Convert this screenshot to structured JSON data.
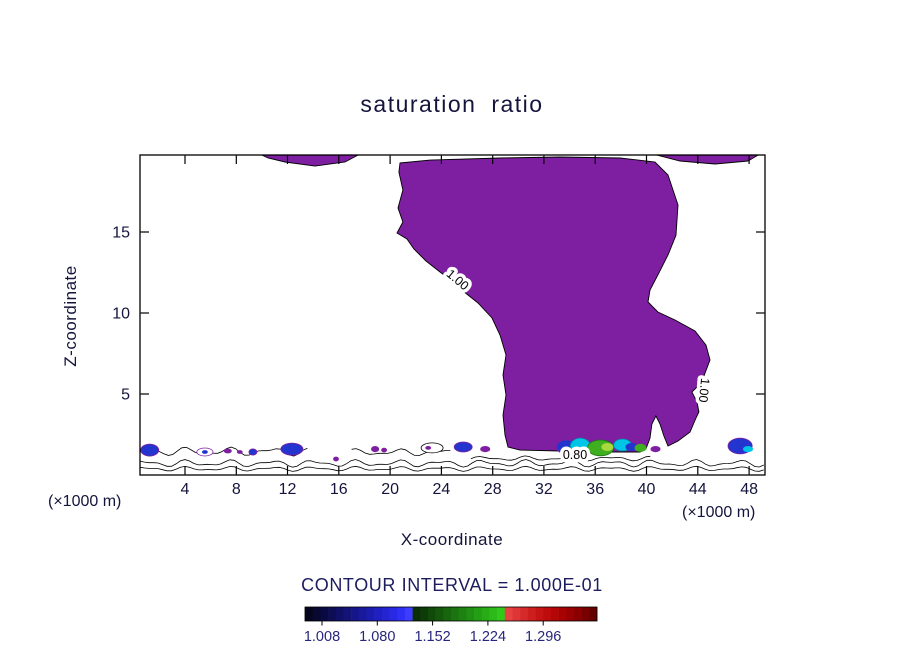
{
  "title": "saturation ratio",
  "caption": "CONTOUR INTERVAL = 1.000E-01",
  "axes": {
    "x_label": "X-coordinate",
    "y_label": "Z-coordinate",
    "unit_left": "(×1000 m)",
    "unit_right": "(×1000 m)"
  },
  "colorbar": {
    "labels": [
      "1.008",
      "1.080",
      "1.152",
      "1.224",
      "1.296"
    ],
    "colors": [
      "#05051e",
      "#080830",
      "#0a0a42",
      "#0d0d54",
      "#101066",
      "#131378",
      "#16168a",
      "#19199c",
      "#1c1cae",
      "#2020c0",
      "#2424d2",
      "#2929e4",
      "#2f2ff6",
      "#3d3dff",
      "#0b2e06",
      "#0e3c08",
      "#114a0a",
      "#14580c",
      "#17660e",
      "#1a7410",
      "#1d8212",
      "#209012",
      "#249e14",
      "#28ac16",
      "#2cba18",
      "#31c81a",
      "#e64242",
      "#de3636",
      "#d62a2a",
      "#ce1f1f",
      "#c61414",
      "#be0c0c",
      "#b40606",
      "#a80303",
      "#9a0101",
      "#8a0000",
      "#780000",
      "#640000"
    ]
  },
  "chart_data": {
    "type": "contour",
    "title": "saturation ratio",
    "xlabel": "X-coordinate (×1000 m)",
    "ylabel": "Z-coordinate (×1000 m)",
    "x_range": [
      0.5,
      49.2
    ],
    "z_range": [
      0,
      19.75
    ],
    "x_tick_values": [
      4,
      8,
      12,
      16,
      20,
      24,
      28,
      32,
      36,
      40,
      44,
      48
    ],
    "z_tick_values": [
      5,
      10,
      15
    ],
    "contour_interval": "1.000E-01",
    "colorbar_level_values": [
      1.008,
      1.08,
      1.152,
      1.224,
      1.296
    ],
    "contour_labels": [
      {
        "text": "1.00",
        "x": 25.06,
        "z": 11.85,
        "rot": 40
      },
      {
        "text": "1.00",
        "x": 44.17,
        "z": 5.25,
        "rot": 95
      },
      {
        "text": "0.80",
        "x": 34.42,
        "z": 0.99,
        "rot": 0
      }
    ],
    "fill_colors": {
      "purple": "#7e1fa2",
      "blue": "#2334cf",
      "cyan": "#00c5e6",
      "green": "#3fae1f",
      "lightgreen": "#a8da3e",
      "white": "#ffffff"
    },
    "regions": [
      {
        "name": "main-saturated-plume",
        "fill": "purple",
        "points": [
          [
            20.77,
            19.26
          ],
          [
            23.11,
            19.44
          ],
          [
            28.57,
            19.57
          ],
          [
            33.25,
            19.63
          ],
          [
            37.93,
            19.57
          ],
          [
            40.66,
            19.32
          ],
          [
            41.68,
            18.52
          ],
          [
            42.46,
            16.67
          ],
          [
            42.3,
            14.81
          ],
          [
            41.68,
            13.58
          ],
          [
            40.89,
            12.35
          ],
          [
            40.27,
            11.42
          ],
          [
            40.12,
            10.68
          ],
          [
            40.89,
            10.06
          ],
          [
            42.22,
            9.57
          ],
          [
            43.78,
            8.89
          ],
          [
            44.64,
            8.02
          ],
          [
            44.95,
            7.1
          ],
          [
            44.48,
            6.11
          ],
          [
            44.01,
            5.49
          ],
          [
            43.54,
            5.12
          ],
          [
            43.94,
            4.51
          ],
          [
            44.09,
            3.89
          ],
          [
            43.86,
            3.52
          ],
          [
            43.39,
            2.65
          ],
          [
            42.46,
            2.1
          ],
          [
            41.68,
            1.79
          ],
          [
            41.36,
            2.41
          ],
          [
            41.05,
            3.15
          ],
          [
            40.73,
            3.64
          ],
          [
            40.42,
            3.15
          ],
          [
            40.27,
            2.28
          ],
          [
            39.95,
            1.6
          ],
          [
            39.49,
            1.42
          ],
          [
            36.37,
            1.42
          ],
          [
            33.25,
            1.48
          ],
          [
            30.13,
            1.54
          ],
          [
            29.2,
            1.73
          ],
          [
            28.96,
            2.47
          ],
          [
            28.81,
            3.7
          ],
          [
            29.04,
            4.94
          ],
          [
            28.81,
            6.17
          ],
          [
            29.04,
            7.41
          ],
          [
            28.57,
            8.64
          ],
          [
            27.95,
            9.69
          ],
          [
            26.86,
            10.62
          ],
          [
            25.69,
            11.36
          ],
          [
            24.83,
            11.98
          ],
          [
            23.89,
            12.53
          ],
          [
            22.8,
            13.21
          ],
          [
            21.86,
            13.95
          ],
          [
            21.32,
            14.57
          ],
          [
            20.54,
            14.94
          ],
          [
            21.0,
            15.62
          ],
          [
            20.62,
            16.48
          ],
          [
            21.0,
            17.59
          ],
          [
            20.69,
            18.7
          ]
        ]
      },
      {
        "name": "top-left-patch",
        "fill": "purple",
        "points": [
          [
            10.01,
            19.75
          ],
          [
            17.5,
            19.75
          ],
          [
            16.48,
            19.32
          ],
          [
            14.14,
            19.07
          ],
          [
            11.8,
            19.32
          ],
          [
            10.48,
            19.57
          ]
        ]
      },
      {
        "name": "top-right-patch",
        "fill": "purple",
        "points": [
          [
            40.81,
            19.75
          ],
          [
            48.7,
            19.75
          ],
          [
            47.92,
            19.38
          ],
          [
            45.34,
            19.2
          ],
          [
            42.61,
            19.38
          ]
        ]
      }
    ],
    "ground_lines": [
      {
        "z": 0.38,
        "x0": 0.5,
        "x1": 49.2,
        "amp": 0.1
      },
      {
        "z": 0.72,
        "x0": 0.5,
        "x1": 49.2,
        "amp": 0.15
      },
      {
        "z": 1.02,
        "x0": 26.3,
        "x1": 40.5,
        "amp": 0.1
      },
      {
        "z": 1.45,
        "x0": 0.6,
        "x1": 13.8,
        "amp": 0.18
      },
      {
        "z": 1.4,
        "x0": 17.0,
        "x1": 24.8,
        "amp": 0.15
      }
    ],
    "patches": [
      {
        "x": 1.25,
        "z": 1.54,
        "rx": 0.7,
        "rz": 0.37,
        "f": "blue",
        "s": "purple"
      },
      {
        "x": 5.55,
        "z": 1.42,
        "rx": 0.63,
        "rz": 0.25,
        "f": "white",
        "s": "purple"
      },
      {
        "x": 5.55,
        "z": 1.42,
        "rx": 0.23,
        "rz": 0.12,
        "f": "blue",
        "s": "none"
      },
      {
        "x": 7.34,
        "z": 1.48,
        "rx": 0.31,
        "rz": 0.15,
        "f": "purple",
        "s": "none"
      },
      {
        "x": 8.28,
        "z": 1.42,
        "rx": 0.23,
        "rz": 0.12,
        "f": "purple",
        "s": "none"
      },
      {
        "x": 9.3,
        "z": 1.42,
        "rx": 0.31,
        "rz": 0.19,
        "f": "blue",
        "s": "purple"
      },
      {
        "x": 12.34,
        "z": 1.6,
        "rx": 0.86,
        "rz": 0.37,
        "f": "blue",
        "s": "purple"
      },
      {
        "x": 15.78,
        "z": 0.99,
        "rx": 0.23,
        "rz": 0.15,
        "f": "purple",
        "s": "none"
      },
      {
        "x": 18.83,
        "z": 1.6,
        "rx": 0.31,
        "rz": 0.19,
        "f": "purple",
        "s": "none"
      },
      {
        "x": 19.53,
        "z": 1.54,
        "rx": 0.23,
        "rz": 0.15,
        "f": "purple",
        "s": "none"
      },
      {
        "x": 23.28,
        "z": 1.67,
        "rx": 0.86,
        "rz": 0.31,
        "f": "white",
        "s": "#000000"
      },
      {
        "x": 22.97,
        "z": 1.67,
        "rx": 0.23,
        "rz": 0.12,
        "f": "purple",
        "s": "none"
      },
      {
        "x": 25.7,
        "z": 1.73,
        "rx": 0.7,
        "rz": 0.31,
        "f": "blue",
        "s": "purple"
      },
      {
        "x": 27.42,
        "z": 1.6,
        "rx": 0.39,
        "rz": 0.19,
        "f": "purple",
        "s": "none"
      },
      {
        "x": 33.75,
        "z": 1.73,
        "rx": 0.78,
        "rz": 0.43,
        "f": "blue",
        "s": "purple"
      },
      {
        "x": 34.84,
        "z": 1.79,
        "rx": 0.78,
        "rz": 0.49,
        "f": "cyan",
        "s": "#0b7fa0"
      },
      {
        "x": 36.41,
        "z": 1.67,
        "rx": 1.02,
        "rz": 0.49,
        "f": "green",
        "s": "#1a7a10"
      },
      {
        "x": 36.95,
        "z": 1.73,
        "rx": 0.47,
        "rz": 0.25,
        "f": "lightgreen",
        "s": "none"
      },
      {
        "x": 38.13,
        "z": 1.85,
        "rx": 0.7,
        "rz": 0.37,
        "f": "cyan",
        "s": "#0b7fa0"
      },
      {
        "x": 38.83,
        "z": 1.73,
        "rx": 0.47,
        "rz": 0.25,
        "f": "blue",
        "s": "none"
      },
      {
        "x": 39.53,
        "z": 1.67,
        "rx": 0.47,
        "rz": 0.25,
        "f": "green",
        "s": "none"
      },
      {
        "x": 40.7,
        "z": 1.6,
        "rx": 0.39,
        "rz": 0.19,
        "f": "purple",
        "s": "none"
      },
      {
        "x": 47.3,
        "z": 1.79,
        "rx": 0.94,
        "rz": 0.49,
        "f": "blue",
        "s": "purple"
      },
      {
        "x": 47.92,
        "z": 1.6,
        "rx": 0.39,
        "rz": 0.19,
        "f": "cyan",
        "s": "none"
      }
    ]
  }
}
